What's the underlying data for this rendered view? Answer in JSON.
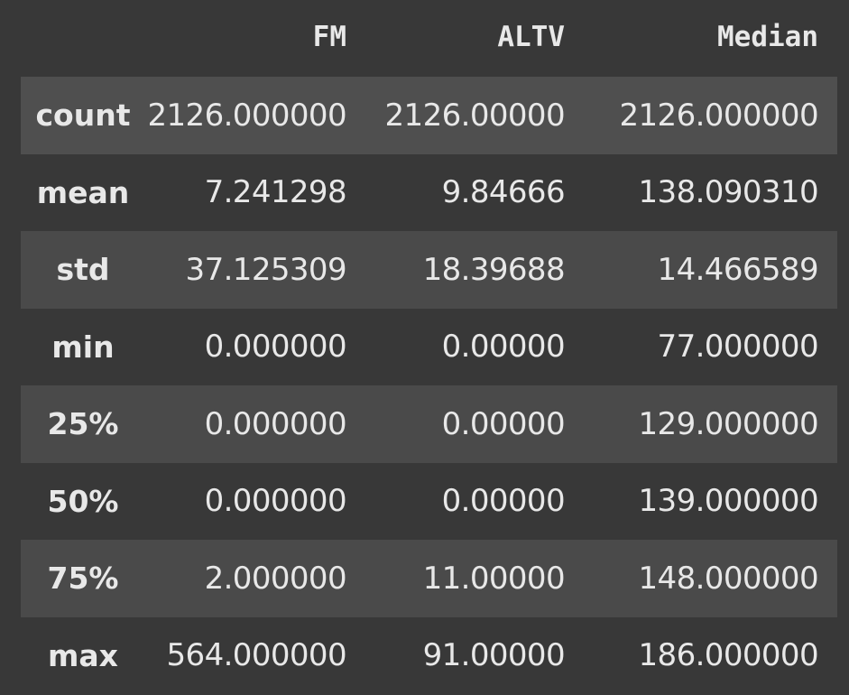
{
  "table": {
    "columns": [
      "FM",
      "ALTV",
      "Median"
    ],
    "rows": [
      {
        "label": "count",
        "values": [
          "2126.000000",
          "2126.00000",
          "2126.000000"
        ]
      },
      {
        "label": "mean",
        "values": [
          "7.241298",
          "9.84666",
          "138.090310"
        ]
      },
      {
        "label": "std",
        "values": [
          "37.125309",
          "18.39688",
          "14.466589"
        ]
      },
      {
        "label": "min",
        "values": [
          "0.000000",
          "0.00000",
          "77.000000"
        ]
      },
      {
        "label": "25%",
        "values": [
          "0.000000",
          "0.00000",
          "129.000000"
        ]
      },
      {
        "label": "50%",
        "values": [
          "0.000000",
          "0.00000",
          "139.000000"
        ]
      },
      {
        "label": "75%",
        "values": [
          "2.000000",
          "11.00000",
          "148.000000"
        ]
      },
      {
        "label": "max",
        "values": [
          "564.000000",
          "91.00000",
          "186.000000"
        ]
      }
    ]
  },
  "colors": {
    "background": "#383838",
    "stripe": "#4a4a4a",
    "highlight": "#4f4f4f",
    "text": "#e8e8e8"
  }
}
